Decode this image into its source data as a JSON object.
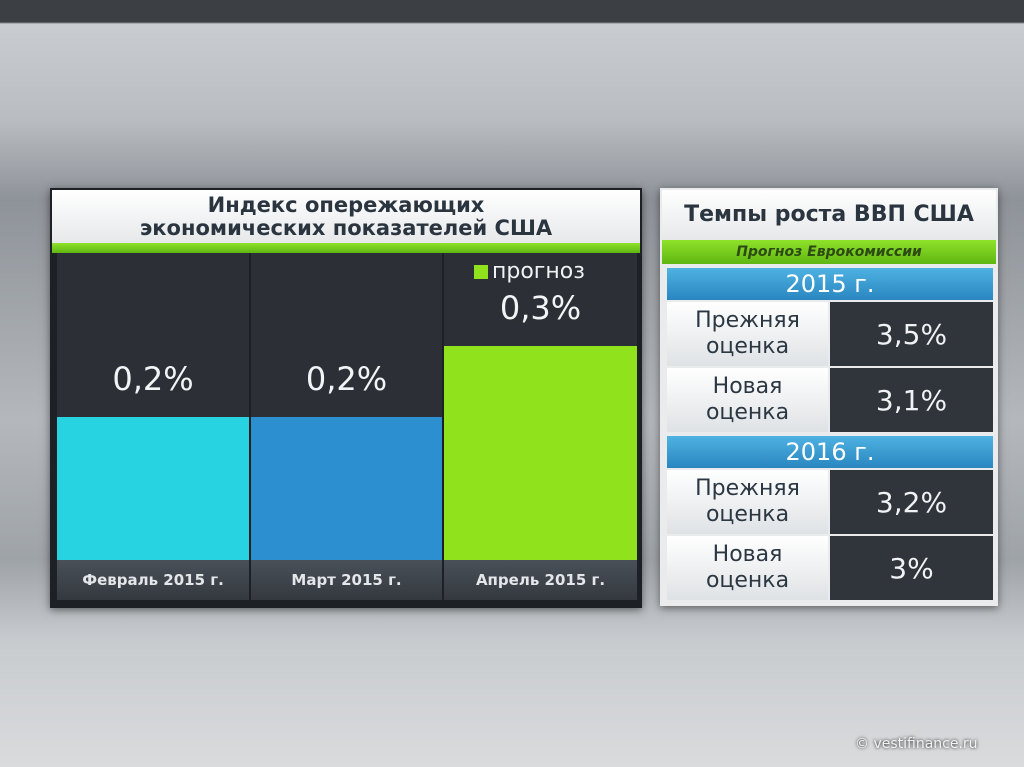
{
  "chart_data": {
    "type": "bar",
    "title": [
      "Индекс опережающих",
      "экономических показателей США"
    ],
    "categories": [
      "Февраль 2015 г.",
      "Март 2015 г.",
      "Апрель 2015 г."
    ],
    "values": [
      0.2,
      0.2,
      0.3
    ],
    "value_labels": [
      "0,2%",
      "0,2%",
      "0,3%"
    ],
    "colors": [
      "#27d3e0",
      "#2b8fd0",
      "#8fe21c"
    ],
    "legend": {
      "label": "прогноз",
      "color": "#8fe21c"
    }
  },
  "table": {
    "title": "Темпы роста ВВП США",
    "subtitle": "Прогноз Еврокомиссии",
    "groups": [
      {
        "year": "2015 г.",
        "rows": [
          [
            "Прежняя оценка",
            "3,5%"
          ],
          [
            "Новая оценка",
            "3,1%"
          ]
        ]
      },
      {
        "year": "2016 г.",
        "rows": [
          [
            "Прежняя оценка",
            "3,2%"
          ],
          [
            "Новая оценка",
            "3%"
          ]
        ]
      }
    ]
  },
  "watermark": "© vestifinance.ru"
}
